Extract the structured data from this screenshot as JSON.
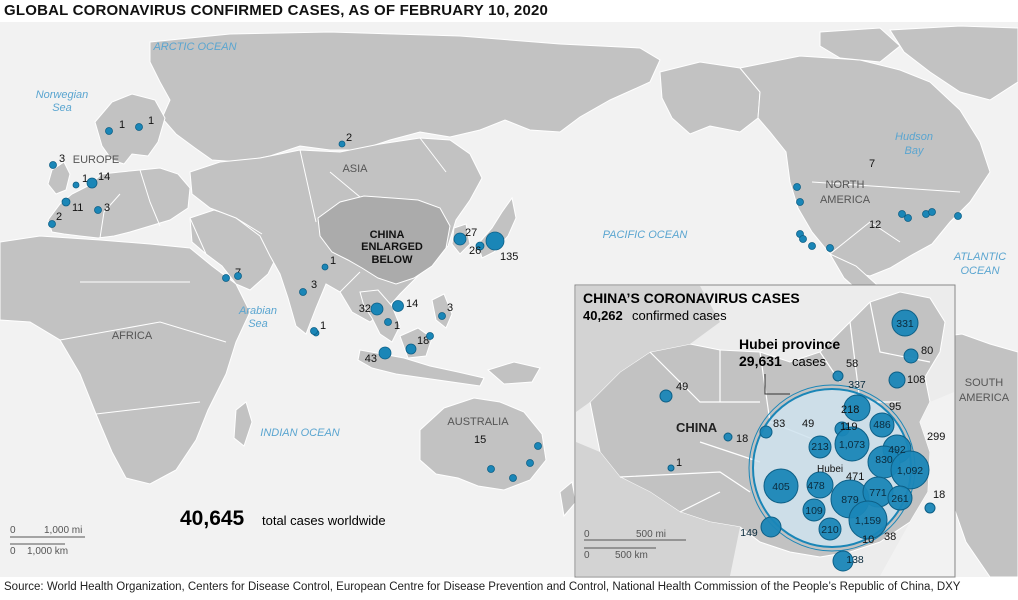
{
  "title": "GLOBAL CORONAVIRUS CONFIRMED CASES, AS OF FEBRUARY 10, 2020",
  "source": "Source: World Health Organization, Centers for Disease Control, European Centre for Disease Prevention and Control, National Health Commission of the People’s Republic of China, DXY",
  "colors": {
    "ocean": "#f2f2f2",
    "land": "#c2c2c2",
    "land_highlight": "#ababab",
    "border": "#ffffff",
    "bubble": "#1a86b7",
    "bubble_stroke": "#0d5f86",
    "hubei_fill": "#cfe3ef",
    "water_label": "#5aa5d0"
  },
  "water_labels": {
    "arctic": "ARCTIC OCEAN",
    "norwegian_1": "Norwegian",
    "norwegian_2": "Sea",
    "pacific": "PACIFIC OCEAN",
    "atlantic_1": "ATLANTIC",
    "atlantic_2": "OCEAN",
    "arabian_1": "Arabian",
    "arabian_2": "Sea",
    "indian": "INDIAN OCEAN",
    "hudson_1": "Hudson",
    "hudson_2": "Bay"
  },
  "region_labels": {
    "europe": "EUROPE",
    "asia": "ASIA",
    "africa": "AFRICA",
    "australia": "AUSTRALIA",
    "north_america_1": "NORTH",
    "north_america_2": "AMERICA",
    "south_america_1": "SOUTH",
    "south_america_2": "AMERICA",
    "china_callout_1": "CHINA",
    "china_callout_2": "ENLARGED",
    "china_callout_3": "BELOW"
  },
  "world_total": {
    "value": "40,645",
    "label": "total cases worldwide"
  },
  "world_scale": {
    "mi_zero": "0",
    "mi": "1,000 mi",
    "km_zero": "0",
    "km": "1,000 km"
  },
  "world_counts": {
    "norway": "1",
    "finland": "1",
    "russia": "2",
    "uk": "3",
    "belgium": "1",
    "germany": "14",
    "france": "11",
    "italy": "3",
    "spain": "2",
    "uae": "7",
    "nepal": "1",
    "india": "3",
    "sri_lanka": "1",
    "thailand": "32",
    "cambodia": "1",
    "vietnam": "14",
    "philippines": "3",
    "malaysia": "18",
    "singapore": "43",
    "south_korea": "27",
    "japan": "26",
    "diamond_princess": "135",
    "australia": "15",
    "canada": "7",
    "usa": "12"
  },
  "inset": {
    "title": "CHINA’S CORONAVIRUS CASES",
    "total_value": "40,262",
    "total_label": "confirmed cases",
    "hubei_title": "Hubei province",
    "hubei_value": "29,631",
    "hubei_label": "cases",
    "china_label": "CHINA",
    "hubei_small": "Hubei",
    "scale": {
      "mi_zero": "0",
      "mi": "500 mi",
      "km_zero": "0",
      "km": "500 km"
    },
    "counts": {
      "heilongjiang": "331",
      "jilin": "80",
      "liaoning": "108",
      "inner_mongolia": "58",
      "xinjiang": "49",
      "tibet": "1",
      "qinghai": "18",
      "gansu": "83",
      "ningxia": "49",
      "beijing": "337",
      "hebei": "218",
      "tianjin": "95",
      "shanxi": "119",
      "shandong": "486",
      "shaanxi": "213",
      "henan": "1,073",
      "jiangsu": "492",
      "shanghai": "299",
      "anhui": "830",
      "zhejiang": "1,092",
      "hubei_bubble": "471",
      "hunan": "879",
      "jiangxi": "771",
      "fujian": "261",
      "taiwan": "18",
      "chongqing": "478",
      "sichuan": "405",
      "guizhou": "109",
      "guangxi": "210",
      "guangdong": "1,159",
      "hong_kong": "38",
      "macau": "10",
      "yunnan": "149",
      "hainan": "138"
    }
  }
}
